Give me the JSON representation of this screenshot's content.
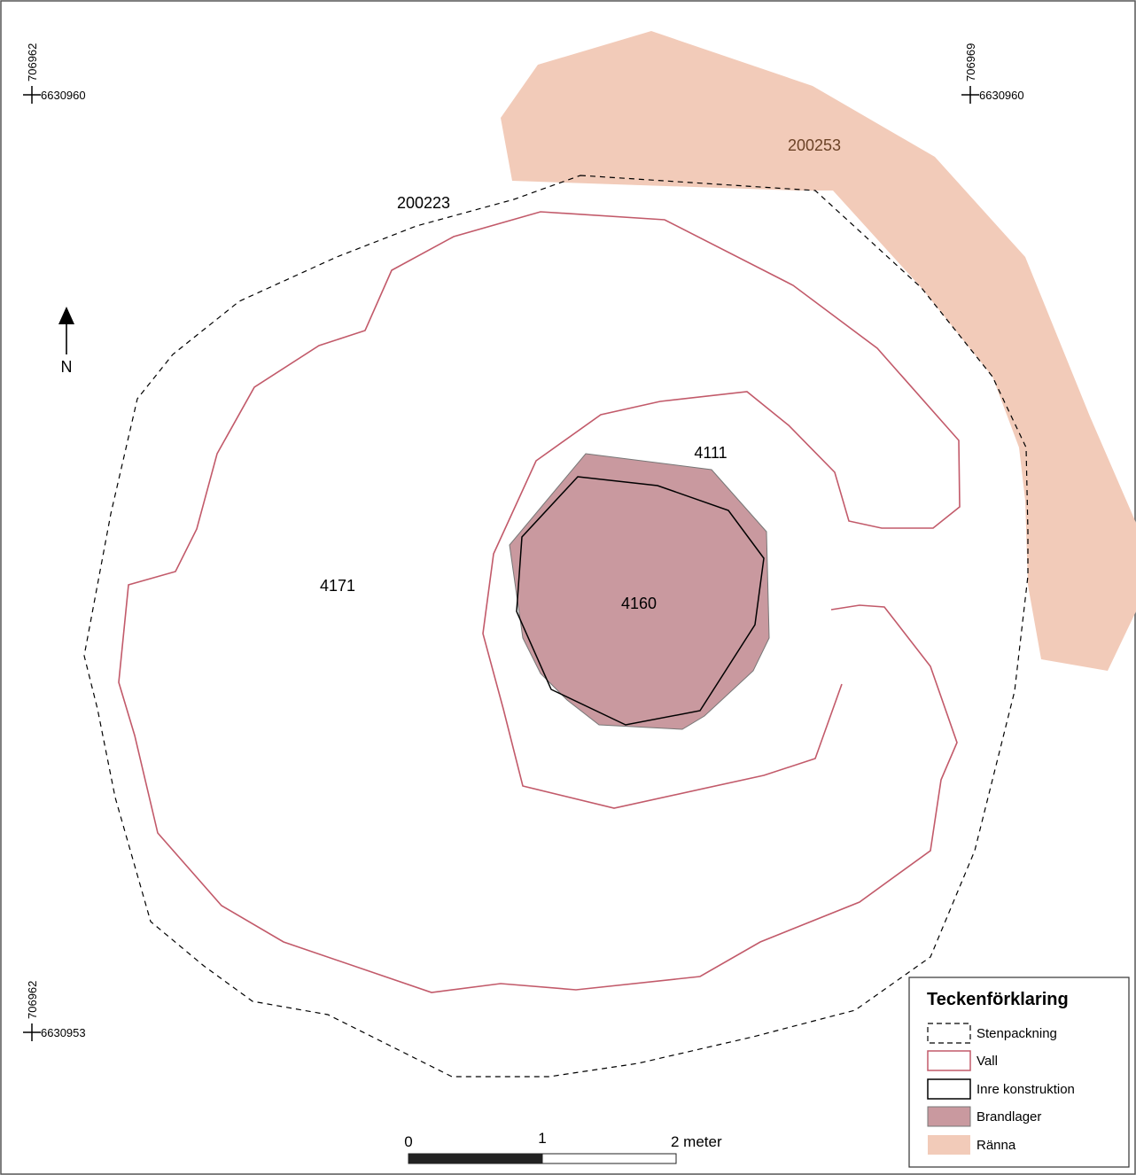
{
  "map": {
    "labels": {
      "ranna": "200253",
      "stenpackning": "200223",
      "vall": "4171",
      "inre": "4111",
      "brandlager": "4160"
    },
    "coordinates": {
      "top_left": {
        "x": "706962",
        "y": "6630960"
      },
      "top_right": {
        "x": "706969",
        "y": "6630960"
      },
      "bottom_left": {
        "x": "706962",
        "y": "6630953"
      }
    },
    "north_arrow": {
      "label": "N"
    },
    "scale_bar": {
      "ticks": [
        "0",
        "1",
        "2 meter"
      ]
    },
    "legend": {
      "title": "Teckenförklaring",
      "items": [
        {
          "label": "Stenpackning",
          "style": "dashed",
          "stroke": "#000000",
          "fill": "none"
        },
        {
          "label": "Vall",
          "style": "solid",
          "stroke": "#c25a6a",
          "fill": "none"
        },
        {
          "label": "Inre konstruktion",
          "style": "solid",
          "stroke": "#000000",
          "fill": "none"
        },
        {
          "label": "Brandlager",
          "style": "fill",
          "stroke": "#777777",
          "fill": "#c9999f"
        },
        {
          "label": "Ränna",
          "style": "fill",
          "stroke": "none",
          "fill": "#f2cbb9"
        }
      ]
    },
    "colors": {
      "ranna_fill": "#f2cbb9",
      "ranna_label": "#6b4226",
      "vall_stroke": "#c25a6a",
      "brandlager_fill": "#c9999f",
      "brandlager_stroke": "#777777"
    }
  }
}
